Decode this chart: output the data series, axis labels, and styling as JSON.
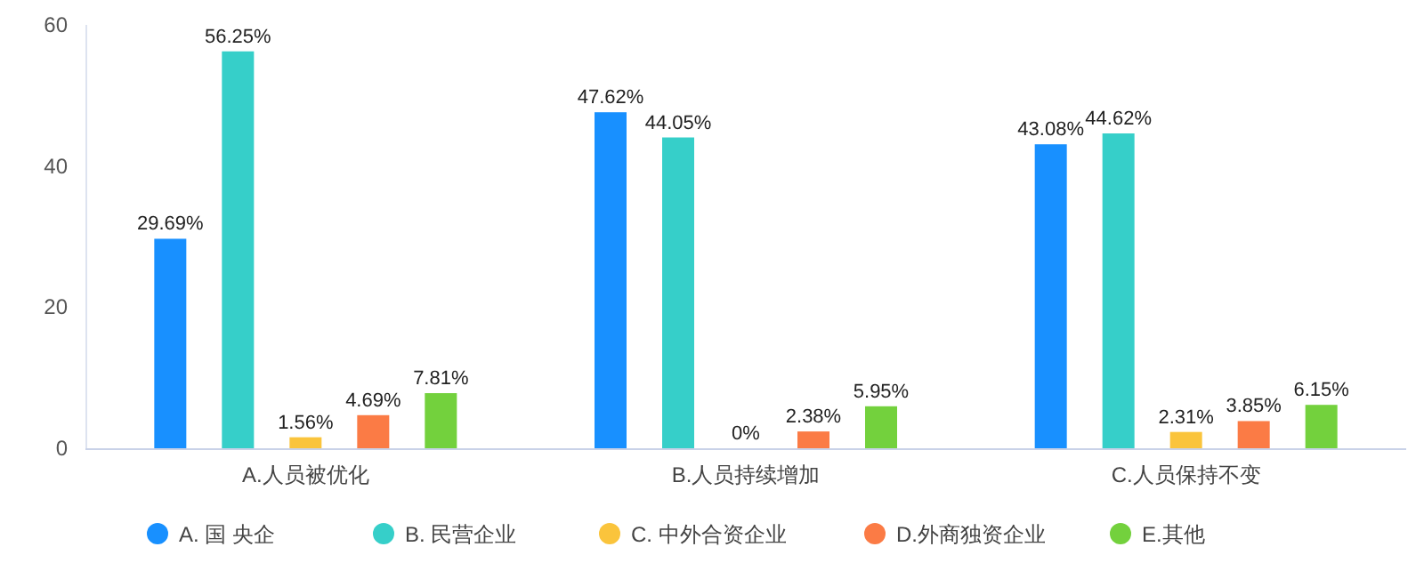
{
  "chart_data": {
    "type": "bar",
    "categories": [
      "A.人员被优化",
      "B.人员持续增加",
      "C.人员保持不变"
    ],
    "ylim": [
      0,
      60
    ],
    "yticks": [
      0,
      20,
      40,
      60
    ],
    "grid": false,
    "legend": "bottom",
    "series": [
      {
        "name": "A. 国 央企",
        "color": "#1890ff",
        "values": [
          29.69,
          47.62,
          43.08
        ],
        "value_labels": [
          "29.69%",
          "47.62%",
          "43.08%"
        ]
      },
      {
        "name": "B. 民营企业",
        "color": "#36cfc9",
        "values": [
          56.25,
          44.05,
          44.62
        ],
        "value_labels": [
          "56.25%",
          "44.05%",
          "44.62%"
        ]
      },
      {
        "name": "C. 中外合资企业",
        "color": "#fac43c",
        "values": [
          1.56,
          0,
          2.31
        ],
        "value_labels": [
          "1.56%",
          "0%",
          "2.31%"
        ]
      },
      {
        "name": "D.外商独资企业",
        "color": "#fb7b45",
        "values": [
          4.69,
          2.38,
          3.85
        ],
        "value_labels": [
          "4.69%",
          "2.38%",
          "3.85%"
        ]
      },
      {
        "name": "E.其他",
        "color": "#73d13d",
        "values": [
          7.81,
          5.95,
          6.15
        ],
        "value_labels": [
          "7.81%",
          "5.95%",
          "6.15%"
        ]
      }
    ]
  }
}
